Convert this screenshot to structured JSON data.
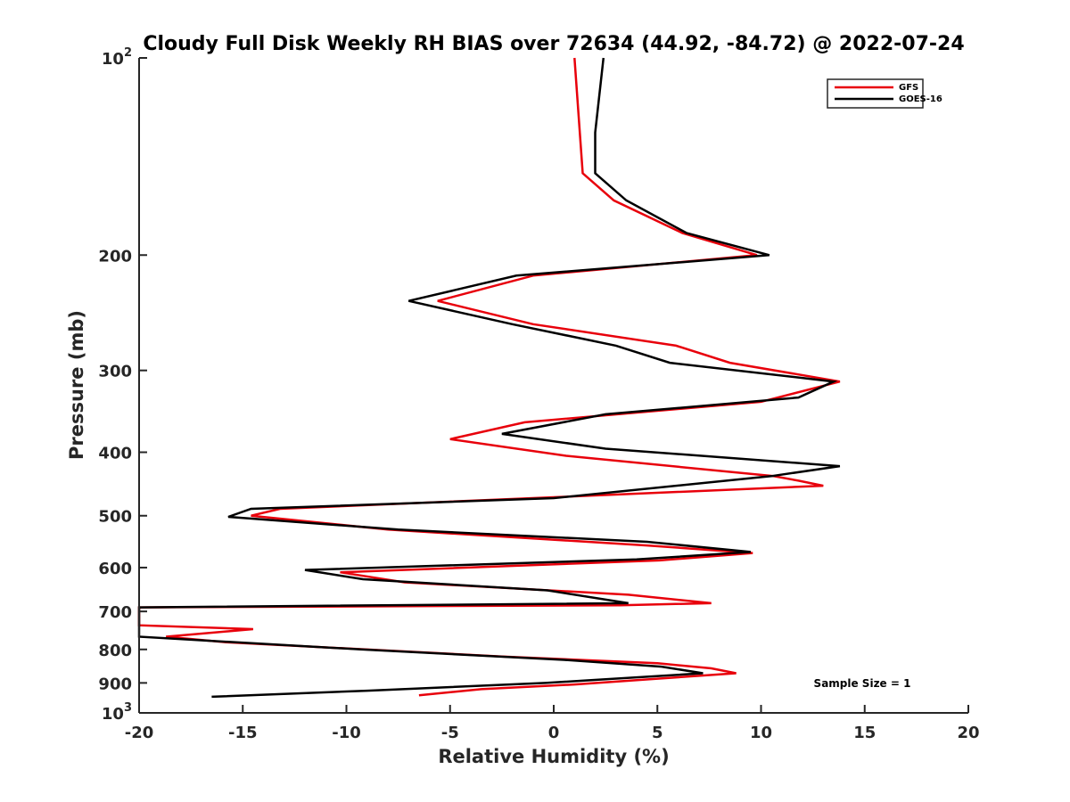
{
  "chart_data": {
    "type": "line",
    "title": "Cloudy Full Disk Weekly RH BIAS over 72634 (44.92, -84.72) @ 2022-07-24",
    "xlabel": "Relative Humidity (%)",
    "ylabel": "Pressure (mb)",
    "xlim": [
      -20,
      20
    ],
    "ylim": [
      100,
      1000
    ],
    "y_scale": "log",
    "y_reversed": true,
    "xticks": [
      "-20",
      "-15",
      "-10",
      "-5",
      "0",
      "5",
      "10",
      "15",
      "20"
    ],
    "yticks": [
      {
        "value": 100,
        "label": "10",
        "exp": "2"
      },
      {
        "value": 200,
        "label": "200",
        "exp": ""
      },
      {
        "value": 300,
        "label": "300",
        "exp": ""
      },
      {
        "value": 400,
        "label": "400",
        "exp": ""
      },
      {
        "value": 500,
        "label": "500",
        "exp": ""
      },
      {
        "value": 600,
        "label": "600",
        "exp": ""
      },
      {
        "value": 700,
        "label": "700",
        "exp": ""
      },
      {
        "value": 800,
        "label": "800",
        "exp": ""
      },
      {
        "value": 900,
        "label": "900",
        "exp": ""
      },
      {
        "value": 1000,
        "label": "10",
        "exp": "3"
      }
    ],
    "grid": false,
    "legend_position": "top-right",
    "annotation": "Sample Size = 1",
    "series": [
      {
        "name": "GFS",
        "color": "#e8000b",
        "points": [
          [
            1.0,
            100
          ],
          [
            1.4,
            150
          ],
          [
            2.9,
            165
          ],
          [
            6.2,
            185
          ],
          [
            9.8,
            200
          ],
          [
            -1.0,
            215
          ],
          [
            -5.6,
            235
          ],
          [
            -1.0,
            255
          ],
          [
            5.9,
            275
          ],
          [
            8.5,
            292
          ],
          [
            13.8,
            312
          ],
          [
            10.0,
            335
          ],
          [
            -1.4,
            360
          ],
          [
            -5.0,
            382
          ],
          [
            0.6,
            405
          ],
          [
            10.6,
            435
          ],
          [
            11.8,
            442
          ],
          [
            13.0,
            450
          ],
          [
            -13.2,
            488
          ],
          [
            -14.6,
            500
          ],
          [
            -8.0,
            525
          ],
          [
            4.5,
            555
          ],
          [
            9.6,
            570
          ],
          [
            5.1,
            585
          ],
          [
            -10.3,
            610
          ],
          [
            -7.2,
            632
          ],
          [
            3.6,
            660
          ],
          [
            7.6,
            680
          ],
          [
            3.2,
            685
          ],
          [
            -20.0,
            690
          ],
          [
            -20.0,
            735
          ],
          [
            -14.5,
            745
          ],
          [
            -18.7,
            765
          ],
          [
            -15.8,
            780
          ],
          [
            -2.5,
            820
          ],
          [
            5.0,
            840
          ],
          [
            7.6,
            855
          ],
          [
            8.8,
            870
          ],
          [
            1.0,
            905
          ],
          [
            -3.5,
            920
          ],
          [
            -6.5,
            940
          ]
        ]
      },
      {
        "name": "GOES-16",
        "color": "#000000",
        "points": [
          [
            2.4,
            100
          ],
          [
            2.0,
            130
          ],
          [
            2.0,
            150
          ],
          [
            3.5,
            165
          ],
          [
            6.4,
            185
          ],
          [
            10.4,
            200
          ],
          [
            -1.8,
            215
          ],
          [
            -7.0,
            235
          ],
          [
            -2.0,
            255
          ],
          [
            3.0,
            275
          ],
          [
            5.6,
            292
          ],
          [
            13.5,
            312
          ],
          [
            11.8,
            330
          ],
          [
            2.5,
            350
          ],
          [
            -2.5,
            375
          ],
          [
            2.5,
            395
          ],
          [
            13.8,
            420
          ],
          [
            10.5,
            435
          ],
          [
            0.0,
            470
          ],
          [
            -14.6,
            488
          ],
          [
            -15.7,
            502
          ],
          [
            -7.5,
            525
          ],
          [
            4.5,
            548
          ],
          [
            9.5,
            568
          ],
          [
            4.0,
            583
          ],
          [
            -12.0,
            605
          ],
          [
            -9.2,
            625
          ],
          [
            -0.3,
            650
          ],
          [
            3.6,
            680
          ],
          [
            -20.0,
            690
          ],
          [
            -20.0,
            765
          ],
          [
            -9.3,
            800
          ],
          [
            0.5,
            830
          ],
          [
            5.2,
            850
          ],
          [
            7.2,
            870
          ],
          [
            -0.4,
            900
          ],
          [
            -9.0,
            925
          ],
          [
            -16.5,
            945
          ]
        ]
      }
    ]
  }
}
